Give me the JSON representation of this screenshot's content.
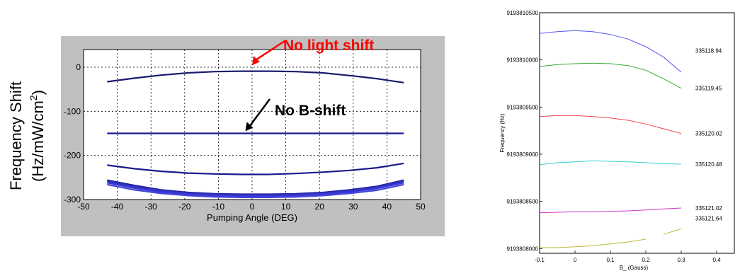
{
  "chart_data": [
    {
      "type": "line",
      "xlabel": "Pumping Angle (DEG)",
      "ylabel_line1": "Frequency Shift",
      "ylabel_line2_pre": "(Hz/mW/cm",
      "ylabel_line2_sup": "2",
      "ylabel_line2_post": ")",
      "xlim": [
        -50,
        50
      ],
      "ylim": [
        -300,
        40
      ],
      "xticks": [
        -50,
        -40,
        -30,
        -20,
        -10,
        0,
        10,
        20,
        30,
        40,
        50
      ],
      "yticks": [
        0,
        -100,
        -200,
        -300
      ],
      "grid": true,
      "background_color": "#c0c0c0",
      "plot_color": "#ffffff",
      "line_colors": [
        "#1a1a6e",
        "#1a1a8c",
        "#1a1a8c",
        "#2424a8",
        "#3030c0",
        "#3a3ad0",
        "#4444dd"
      ],
      "x": [
        -43,
        -35,
        -27,
        -19,
        -11,
        -3,
        5,
        13,
        21,
        29,
        37,
        45
      ],
      "series": [
        {
          "values": [
            -33,
            -25,
            -18,
            -13,
            -10,
            -9,
            -9,
            -10,
            -13,
            -19,
            -26,
            -35
          ]
        },
        {
          "values": [
            -150,
            -150,
            -150,
            -150,
            -150,
            -150,
            -150,
            -150,
            -150,
            -150,
            -150,
            -150
          ]
        },
        {
          "values": [
            -222,
            -230,
            -236,
            -240,
            -242,
            -243,
            -243,
            -241,
            -238,
            -234,
            -228,
            -218
          ]
        },
        {
          "values": [
            -256,
            -268,
            -278,
            -284,
            -287,
            -288,
            -288,
            -287,
            -284,
            -278,
            -270,
            -256
          ]
        },
        {
          "values": [
            -259,
            -271,
            -280,
            -286,
            -289,
            -290,
            -290,
            -289,
            -286,
            -280,
            -272,
            -259
          ]
        },
        {
          "values": [
            -262,
            -274,
            -283,
            -288,
            -291,
            -292,
            -292,
            -291,
            -288,
            -283,
            -275,
            -262
          ]
        },
        {
          "values": [
            -266,
            -278,
            -286,
            -291,
            -294,
            -295,
            -295,
            -294,
            -291,
            -286,
            -279,
            -266
          ]
        }
      ],
      "annotations": [
        {
          "text": "No light shift",
          "color": "#ff0000",
          "arrow_tip": [
            0,
            -2
          ]
        },
        {
          "text": "No B-shift",
          "color": "#000000",
          "arrow_tip": [
            -2,
            -145
          ]
        }
      ]
    },
    {
      "type": "line",
      "xlabel": "B_ (Gauss)",
      "ylabel": "Frequency (Hz)",
      "xlim": [
        -0.1,
        0.45
      ],
      "ylim": [
        9193807950,
        9193810500
      ],
      "xticks": [
        -0.1,
        0,
        0.1,
        0.2,
        0.3,
        0.4
      ],
      "xtick_labels": [
        "-0.1",
        "0",
        "0.1",
        "0.2",
        "0.3",
        "0.4"
      ],
      "yticks": [
        9193808000,
        9193808500,
        9193809000,
        9193809500,
        9193810000,
        9193810500
      ],
      "ytick_labels": [
        "9193808000",
        "9193808500",
        "9193809000",
        "9193809500",
        "9193810000",
        "9193810500"
      ],
      "grid": false,
      "series": [
        {
          "label": "335118.94",
          "color": "#5555ee",
          "x": [
            -0.1,
            -0.05,
            0.0,
            0.05,
            0.1,
            0.15,
            0.2,
            0.25,
            0.3
          ],
          "values": [
            9193810280,
            9193810300,
            9193810310,
            9193810300,
            9193810270,
            9193810220,
            9193810140,
            9193810030,
            9193809870
          ]
        },
        {
          "label": "335119.45",
          "color": "#33aa33",
          "x": [
            -0.1,
            -0.05,
            0.0,
            0.05,
            0.1,
            0.15,
            0.2,
            0.25,
            0.3
          ],
          "values": [
            9193809930,
            9193809950,
            9193809960,
            9193809965,
            9193809960,
            9193809940,
            9193809890,
            9193809800,
            9193809700
          ]
        },
        {
          "label": "335120.02",
          "color": "#ee4444",
          "x": [
            -0.1,
            -0.05,
            0.0,
            0.05,
            0.1,
            0.15,
            0.2,
            0.25,
            0.3
          ],
          "values": [
            9193809400,
            9193809410,
            9193809410,
            9193809400,
            9193809385,
            9193809360,
            9193809320,
            9193809270,
            9193809220
          ]
        },
        {
          "label": "335120.48",
          "color": "#33cccc",
          "x": [
            -0.1,
            -0.05,
            0.0,
            0.05,
            0.1,
            0.15,
            0.2,
            0.25,
            0.3
          ],
          "values": [
            9193808890,
            9193808910,
            9193808920,
            9193808930,
            9193808925,
            9193808920,
            9193808910,
            9193808900,
            9193808895
          ]
        },
        {
          "label": "335121.02",
          "color": "#cc33cc",
          "x": [
            -0.1,
            -0.05,
            0.0,
            0.05,
            0.1,
            0.15,
            0.2,
            0.25,
            0.3
          ],
          "values": [
            9193808380,
            9193808385,
            9193808390,
            9193808390,
            9193808395,
            9193808400,
            9193808410,
            9193808420,
            9193808430
          ]
        },
        {
          "label": "335121.64",
          "color": "#bbbb33",
          "segments": [
            {
              "x": [
                -0.1,
                -0.05,
                0.0,
                0.05,
                0.1,
                0.15,
                0.2
              ],
              "values": [
                9193808010,
                9193808010,
                9193808020,
                9193808030,
                9193808050,
                9193808070,
                9193808100
              ]
            },
            {
              "x": [
                0.25,
                0.27,
                0.3
              ],
              "values": [
                9193808150,
                9193808175,
                9193808210
              ]
            }
          ]
        }
      ]
    }
  ]
}
